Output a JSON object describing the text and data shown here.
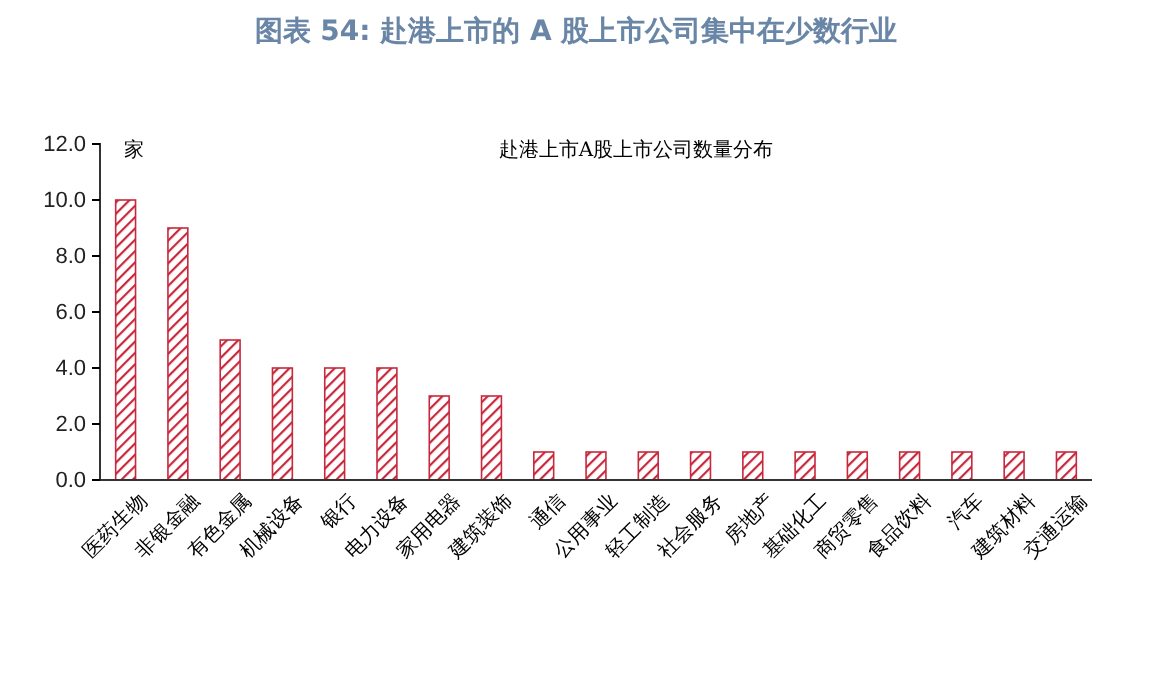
{
  "chart_data": {
    "type": "bar",
    "title": "图表 54: 赴港上市的 A 股上市公司集中在少数行业",
    "subtitle": "赴港上市A股上市公司数量分布",
    "ylabel": "家",
    "categories": [
      "医药生物",
      "非银金融",
      "有色金属",
      "机械设备",
      "银行",
      "电力设备",
      "家用电器",
      "建筑装饰",
      "通信",
      "公用事业",
      "轻工制造",
      "社会服务",
      "房地产",
      "基础化工",
      "商贸零售",
      "食品饮料",
      "汽车",
      "建筑材料",
      "交通运输"
    ],
    "series": [
      {
        "color": "#c8283c",
        "values": [
          10,
          9,
          5,
          4,
          4,
          4,
          3,
          3,
          1,
          1,
          1,
          1,
          1,
          1,
          1,
          1,
          1,
          1,
          1
        ]
      }
    ],
    "ylim": [
      0,
      12
    ],
    "yticks": [
      {
        "value": 0,
        "label": "0.0"
      },
      {
        "value": 2,
        "label": "2.0"
      },
      {
        "value": 4,
        "label": "4.0"
      },
      {
        "value": 6,
        "label": "6.0"
      },
      {
        "value": 8,
        "label": "8.0"
      },
      {
        "value": 10,
        "label": "10.0"
      },
      {
        "value": 12,
        "label": "12.0"
      }
    ],
    "grid": false
  }
}
